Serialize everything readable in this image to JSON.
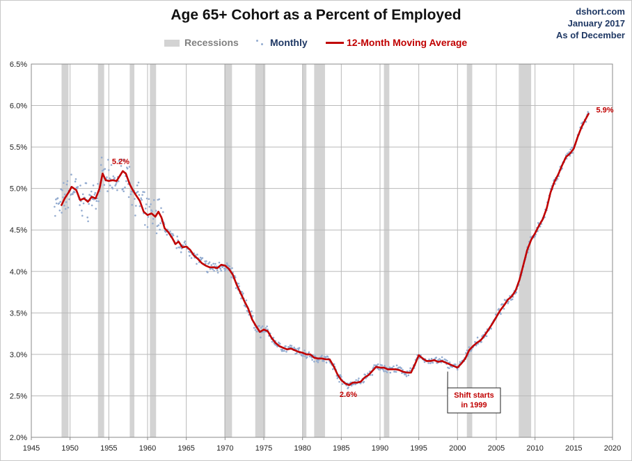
{
  "source": {
    "site": "dshort.com",
    "date": "January 2017",
    "as_of": "As of December"
  },
  "colors": {
    "recession": "#d3d3d3",
    "monthly": "#94acd0",
    "moving_average": "#c00000",
    "grid": "#b9b9b9",
    "annotation": "#c00000"
  },
  "chart_data": {
    "type": "line",
    "title": "Age 65+ Cohort as a Percent of Employed",
    "xlabel": "",
    "ylabel": "",
    "xlim": [
      1945,
      2020
    ],
    "ylim": [
      2.0,
      6.5
    ],
    "grid": true,
    "legend_placement": "top-center",
    "legend": [
      {
        "label": "Recessions",
        "color": "#d3d3d3",
        "kind": "band"
      },
      {
        "label": "Monthly",
        "color": "#94acd0",
        "kind": "dots"
      },
      {
        "label": "12-Month Moving Average",
        "color": "#c00000",
        "kind": "line"
      }
    ],
    "x_ticks": [
      1945,
      1950,
      1955,
      1960,
      1965,
      1970,
      1975,
      1980,
      1985,
      1990,
      1995,
      2000,
      2005,
      2010,
      2015,
      2020
    ],
    "y_ticks": [
      2.0,
      2.5,
      3.0,
      3.5,
      4.0,
      4.5,
      5.0,
      5.5,
      6.0,
      6.5
    ],
    "y_tick_labels": [
      "2.0%",
      "2.5%",
      "3.0%",
      "3.5%",
      "4.0%",
      "4.5%",
      "5.0%",
      "5.5%",
      "6.0%",
      "6.5%"
    ],
    "recessions": [
      [
        1948.9,
        1949.8
      ],
      [
        1953.6,
        1954.4
      ],
      [
        1957.7,
        1958.3
      ],
      [
        1960.3,
        1961.1
      ],
      [
        1969.9,
        1970.9
      ],
      [
        1973.9,
        1975.2
      ],
      [
        1980.0,
        1980.5
      ],
      [
        1981.5,
        1982.9
      ],
      [
        1990.5,
        1991.2
      ],
      [
        2001.2,
        2001.9
      ],
      [
        2007.9,
        2009.5
      ]
    ],
    "series": [
      {
        "name": "12-Month Moving Average",
        "x": [
          1948.9,
          1949.3,
          1949.8,
          1950.2,
          1950.8,
          1951.3,
          1951.8,
          1952.3,
          1952.8,
          1953.3,
          1953.8,
          1954.2,
          1954.6,
          1955.0,
          1955.5,
          1956.0,
          1956.4,
          1956.8,
          1957.2,
          1957.7,
          1958.1,
          1958.5,
          1959.0,
          1959.5,
          1960.0,
          1960.5,
          1961.0,
          1961.4,
          1961.8,
          1962.2,
          1962.7,
          1963.2,
          1963.6,
          1964.0,
          1964.5,
          1965.0,
          1965.5,
          1966.0,
          1966.5,
          1967.0,
          1967.5,
          1968.0,
          1968.5,
          1969.0,
          1969.5,
          1970.0,
          1970.5,
          1971.0,
          1971.5,
          1972.0,
          1972.5,
          1973.0,
          1973.5,
          1974.0,
          1974.5,
          1975.0,
          1975.5,
          1976.0,
          1976.5,
          1977.0,
          1977.5,
          1978.0,
          1978.5,
          1979.0,
          1979.5,
          1980.0,
          1980.5,
          1981.0,
          1981.5,
          1982.0,
          1982.5,
          1983.0,
          1983.5,
          1984.0,
          1984.5,
          1985.0,
          1985.5,
          1986.0,
          1986.5,
          1987.0,
          1987.5,
          1988.0,
          1988.5,
          1989.0,
          1989.5,
          1990.0,
          1990.5,
          1991.0,
          1991.5,
          1992.0,
          1992.5,
          1993.0,
          1993.5,
          1994.0,
          1994.5,
          1995.0,
          1995.5,
          1996.0,
          1996.5,
          1997.0,
          1997.5,
          1998.0,
          1998.5,
          1999.0,
          1999.5,
          2000.0,
          2000.5,
          2001.0,
          2001.5,
          2002.0,
          2002.5,
          2003.0,
          2003.5,
          2004.0,
          2004.5,
          2005.0,
          2005.5,
          2006.0,
          2006.5,
          2007.0,
          2007.5,
          2008.0,
          2008.5,
          2009.0,
          2009.5,
          2010.0,
          2010.5,
          2011.0,
          2011.5,
          2012.0,
          2012.5,
          2013.0,
          2013.5,
          2014.0,
          2014.5,
          2015.0,
          2015.5,
          2016.0,
          2016.5,
          2016.9
        ],
        "y": [
          4.8,
          4.88,
          4.95,
          5.02,
          4.98,
          4.86,
          4.88,
          4.84,
          4.9,
          4.88,
          5.0,
          5.18,
          5.1,
          5.09,
          5.1,
          5.09,
          5.15,
          5.21,
          5.18,
          5.05,
          4.98,
          4.92,
          4.85,
          4.72,
          4.68,
          4.7,
          4.66,
          4.72,
          4.65,
          4.52,
          4.47,
          4.4,
          4.33,
          4.36,
          4.29,
          4.3,
          4.26,
          4.19,
          4.15,
          4.1,
          4.07,
          4.05,
          4.05,
          4.04,
          4.08,
          4.07,
          4.03,
          3.96,
          3.84,
          3.74,
          3.64,
          3.55,
          3.42,
          3.34,
          3.27,
          3.3,
          3.28,
          3.2,
          3.14,
          3.1,
          3.08,
          3.06,
          3.07,
          3.05,
          3.03,
          3.02,
          3.0,
          3.0,
          2.96,
          2.95,
          2.95,
          2.94,
          2.94,
          2.86,
          2.76,
          2.69,
          2.65,
          2.63,
          2.66,
          2.66,
          2.67,
          2.72,
          2.75,
          2.8,
          2.85,
          2.84,
          2.84,
          2.82,
          2.82,
          2.82,
          2.81,
          2.79,
          2.78,
          2.78,
          2.88,
          2.99,
          2.95,
          2.92,
          2.92,
          2.93,
          2.91,
          2.92,
          2.9,
          2.88,
          2.86,
          2.84,
          2.89,
          2.95,
          3.05,
          3.1,
          3.14,
          3.17,
          3.23,
          3.3,
          3.37,
          3.45,
          3.53,
          3.59,
          3.66,
          3.7,
          3.77,
          3.9,
          4.08,
          4.26,
          4.38,
          4.46,
          4.55,
          4.63,
          4.76,
          4.95,
          5.08,
          5.17,
          5.28,
          5.38,
          5.42,
          5.48,
          5.62,
          5.74,
          5.83,
          5.9
        ]
      }
    ],
    "annotations": [
      {
        "text": "5.2%",
        "x": 1956.8,
        "y": 5.21
      },
      {
        "text": "2.6%",
        "x": 1986.0,
        "y": 2.63
      },
      {
        "text": "5.9%",
        "x": 2016.9,
        "y": 5.9
      },
      {
        "text": "Shift starts in 1999",
        "lines": [
          "Shift starts",
          "in 1999"
        ],
        "x": 1999.0,
        "y": 2.86
      }
    ]
  }
}
